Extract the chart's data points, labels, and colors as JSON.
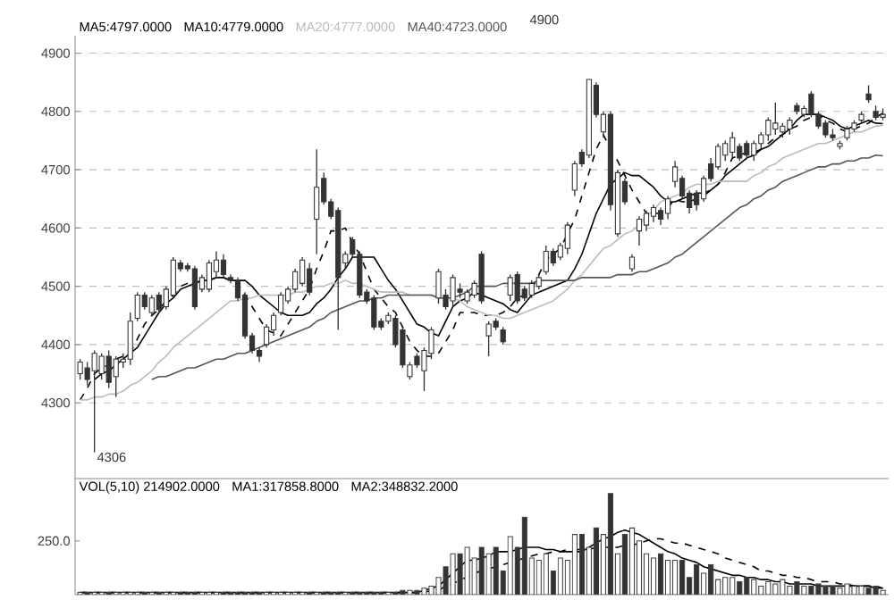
{
  "chart_data": [
    {
      "type": "candlestick",
      "categories": [
        null,
        null,
        null,
        null,
        null,
        null,
        null,
        null,
        null,
        null,
        null,
        null,
        null,
        null,
        null,
        null,
        null,
        null,
        null,
        null,
        null,
        null,
        null,
        null,
        null,
        null,
        null,
        null,
        null,
        null,
        null,
        null,
        null,
        null,
        null,
        null,
        null,
        null,
        null,
        null,
        null,
        null,
        null,
        null,
        null,
        null,
        null,
        null,
        null,
        null,
        null,
        null,
        null,
        null,
        null,
        null,
        null,
        null,
        null,
        null,
        null,
        null,
        null,
        null,
        null,
        null,
        null,
        null,
        null,
        null,
        null,
        null,
        null,
        null,
        null,
        null,
        null,
        null,
        null,
        null,
        null,
        null,
        null,
        null,
        null,
        null,
        null,
        null,
        null,
        null,
        null,
        null,
        null,
        null,
        null,
        null,
        null,
        null,
        null,
        null,
        null,
        null,
        null,
        null,
        null,
        null,
        null,
        null,
        null,
        null,
        null,
        null,
        null
      ],
      "ohlc": [
        [
          4350,
          4375,
          4340,
          4370
        ],
        [
          4360,
          4370,
          4330,
          4340
        ],
        [
          4355,
          4390,
          4215,
          4385
        ],
        [
          4350,
          4385,
          4340,
          4380
        ],
        [
          4380,
          4390,
          4325,
          4335
        ],
        [
          4345,
          4380,
          4310,
          4375
        ],
        [
          4370,
          4385,
          4360,
          4375
        ],
        [
          4375,
          4455,
          4365,
          4440
        ],
        [
          4445,
          4490,
          4440,
          4485
        ],
        [
          4485,
          4490,
          4460,
          4465
        ],
        [
          4455,
          4485,
          4450,
          4480
        ],
        [
          4485,
          4490,
          4455,
          4460
        ],
        [
          4465,
          4500,
          4460,
          4495
        ],
        [
          4485,
          4550,
          4480,
          4545
        ],
        [
          4540,
          4545,
          4525,
          4530
        ],
        [
          4535,
          4540,
          4525,
          4530
        ],
        [
          4530,
          4535,
          4460,
          4465
        ],
        [
          4495,
          4520,
          4490,
          4515
        ],
        [
          4495,
          4545,
          4490,
          4540
        ],
        [
          4525,
          4560,
          4515,
          4545
        ],
        [
          4545,
          4555,
          4515,
          4520
        ],
        [
          4515,
          4520,
          4505,
          4510
        ],
        [
          4510,
          4515,
          4475,
          4480
        ],
        [
          4485,
          4490,
          4410,
          4415
        ],
        [
          4415,
          4420,
          4385,
          4390
        ],
        [
          4390,
          4395,
          4370,
          4380
        ],
        [
          4400,
          4435,
          4395,
          4430
        ],
        [
          4425,
          4455,
          4415,
          4450
        ],
        [
          4455,
          4490,
          4450,
          4485
        ],
        [
          4475,
          4500,
          4470,
          4495
        ],
        [
          4495,
          4530,
          4490,
          4525
        ],
        [
          4505,
          4550,
          4500,
          4545
        ],
        [
          4530,
          4540,
          4485,
          4490
        ],
        [
          4615,
          4735,
          4555,
          4670
        ],
        [
          4685,
          4695,
          4640,
          4645
        ],
        [
          4645,
          4650,
          4615,
          4620
        ],
        [
          4630,
          4635,
          4425,
          4515
        ],
        [
          4540,
          4560,
          4530,
          4555
        ],
        [
          4580,
          4585,
          4550,
          4555
        ],
        [
          4555,
          4560,
          4480,
          4485
        ],
        [
          4490,
          4495,
          4470,
          4475
        ],
        [
          4480,
          4485,
          4425,
          4430
        ],
        [
          4440,
          4445,
          4425,
          4430
        ],
        [
          4440,
          4455,
          4435,
          4450
        ],
        [
          4445,
          4450,
          4395,
          4400
        ],
        [
          4425,
          4430,
          4360,
          4365
        ],
        [
          4345,
          4370,
          4340,
          4365
        ],
        [
          4380,
          4385,
          4360,
          4365
        ],
        [
          4355,
          4395,
          4320,
          4390
        ],
        [
          4385,
          4430,
          4375,
          4425
        ],
        [
          4480,
          4530,
          4470,
          4525
        ],
        [
          4485,
          4495,
          4460,
          4465
        ],
        [
          4475,
          4520,
          4465,
          4515
        ],
        [
          4495,
          4505,
          4480,
          4490
        ],
        [
          4475,
          4495,
          4470,
          4490
        ],
        [
          4485,
          4510,
          4480,
          4505
        ],
        [
          4555,
          4560,
          4470,
          4475
        ],
        [
          4415,
          4440,
          4380,
          4435
        ],
        [
          4440,
          4445,
          4425,
          4430
        ],
        [
          4425,
          4430,
          4400,
          4405
        ],
        [
          4485,
          4520,
          4475,
          4515
        ],
        [
          4520,
          4525,
          4470,
          4475
        ],
        [
          4495,
          4500,
          4475,
          4480
        ],
        [
          4485,
          4510,
          4480,
          4505
        ],
        [
          4500,
          4520,
          4495,
          4515
        ],
        [
          4525,
          4570,
          4520,
          4560
        ],
        [
          4560,
          4565,
          4535,
          4540
        ],
        [
          4550,
          4575,
          4545,
          4570
        ],
        [
          4565,
          4610,
          4555,
          4605
        ],
        [
          4665,
          4715,
          4655,
          4710
        ],
        [
          4730,
          4735,
          4705,
          4710
        ],
        [
          4725,
          4855,
          4720,
          4855
        ],
        [
          4845,
          4850,
          4790,
          4795
        ],
        [
          4765,
          4800,
          4755,
          4795
        ],
        [
          4795,
          4800,
          4630,
          4640
        ],
        [
          4590,
          4700,
          4585,
          4695
        ],
        [
          4680,
          4685,
          4640,
          4645
        ],
        [
          4530,
          4555,
          4525,
          4550
        ],
        [
          4595,
          4620,
          4570,
          4615
        ],
        [
          4605,
          4630,
          4595,
          4625
        ],
        [
          4620,
          4640,
          4610,
          4635
        ],
        [
          4630,
          4635,
          4605,
          4615
        ],
        [
          4625,
          4655,
          4615,
          4650
        ],
        [
          4680,
          4715,
          4670,
          4705
        ],
        [
          4685,
          4690,
          4650,
          4655
        ],
        [
          4660,
          4665,
          4625,
          4635
        ],
        [
          4660,
          4665,
          4630,
          4640
        ],
        [
          4650,
          4690,
          4645,
          4685
        ],
        [
          4710,
          4720,
          4680,
          4685
        ],
        [
          4705,
          4745,
          4700,
          4740
        ],
        [
          4725,
          4750,
          4715,
          4745
        ],
        [
          4730,
          4765,
          4720,
          4755
        ],
        [
          4740,
          4745,
          4715,
          4720
        ],
        [
          4745,
          4750,
          4720,
          4725
        ],
        [
          4725,
          4750,
          4715,
          4745
        ],
        [
          4745,
          4765,
          4735,
          4760
        ],
        [
          4760,
          4790,
          4750,
          4785
        ],
        [
          4770,
          4815,
          4760,
          4780
        ],
        [
          4765,
          4780,
          4755,
          4775
        ],
        [
          4770,
          4790,
          4760,
          4785
        ],
        [
          4810,
          4815,
          4795,
          4800
        ],
        [
          4795,
          4810,
          4790,
          4805
        ],
        [
          4830,
          4835,
          4790,
          4795
        ],
        [
          4795,
          4800,
          4770,
          4775
        ],
        [
          4780,
          4785,
          4755,
          4760
        ],
        [
          4760,
          4770,
          4750,
          4755
        ],
        [
          4740,
          4750,
          4735,
          4745
        ],
        [
          4755,
          4775,
          4750,
          4770
        ],
        [
          4770,
          4785,
          4765,
          4780
        ],
        [
          4785,
          4800,
          4780,
          4795
        ],
        [
          4830,
          4845,
          4815,
          4820
        ],
        [
          4800,
          4810,
          4785,
          4790
        ],
        [
          4790,
          4805,
          4785,
          4795
        ]
      ],
      "series": [
        {
          "type": "line",
          "color": "#000000",
          "line_style": "dashed",
          "values": [
            4305,
            4325,
            4350,
            4360,
            4365,
            4375,
            4380,
            4385,
            4410,
            4435,
            4450,
            4460,
            4475,
            4485,
            4500,
            4505,
            4505,
            4510,
            4510,
            4515,
            4515,
            4510,
            4505,
            4485,
            4465,
            4445,
            4425,
            4420,
            4415,
            4435,
            4455,
            4475,
            4495,
            4530,
            4560,
            4595,
            4595,
            4600,
            4575,
            4555,
            4525,
            4495,
            4480,
            4465,
            4455,
            4430,
            4405,
            4390,
            4380,
            4380,
            4385,
            4405,
            4425,
            4455,
            4455,
            4455,
            4450,
            4450,
            4450,
            4455,
            4465,
            4480,
            4485,
            4495,
            4520,
            4545,
            4555,
            4565,
            4590,
            4615,
            4655,
            4695,
            4735,
            4760,
            4735,
            4715,
            4690,
            4665,
            4645,
            4625,
            4625,
            4625,
            4635,
            4650,
            4645,
            4645,
            4650,
            4655,
            4665,
            4675,
            4695,
            4720,
            4725,
            4730,
            4730,
            4735,
            4745,
            4755,
            4760,
            4770,
            4775,
            4785,
            4790,
            4795,
            4785,
            4780,
            4770,
            4765,
            4770,
            4775,
            4780,
            4790,
            4797
          ]
        },
        {
          "type": "line",
          "color": "#000000",
          "line_style": "solid",
          "values": [
            null,
            null,
            4340,
            4350,
            4355,
            4365,
            4375,
            4385,
            4395,
            4415,
            4435,
            4455,
            4470,
            4480,
            4495,
            4500,
            4505,
            4510,
            4510,
            4515,
            4515,
            4510,
            4510,
            4510,
            4500,
            4485,
            4475,
            4465,
            4455,
            4450,
            4450,
            4450,
            4455,
            4470,
            4480,
            4495,
            4515,
            4530,
            4550,
            4550,
            4550,
            4550,
            4530,
            4510,
            4495,
            4475,
            4455,
            4435,
            4430,
            4420,
            4415,
            4440,
            4465,
            4475,
            4480,
            4490,
            4485,
            4480,
            4475,
            4470,
            4460,
            4455,
            4470,
            4485,
            4490,
            4495,
            4500,
            4505,
            4510,
            4530,
            4555,
            4590,
            4625,
            4650,
            4675,
            4685,
            4695,
            4690,
            4690,
            4680,
            4670,
            4655,
            4645,
            4645,
            4650,
            4655,
            4660,
            4660,
            4665,
            4675,
            4690,
            4700,
            4710,
            4720,
            4725,
            4735,
            4740,
            4750,
            4760,
            4770,
            4785,
            4795,
            4795,
            4795,
            4790,
            4785,
            4775,
            4770,
            4775,
            4780,
            4785,
            4780,
            4779
          ]
        },
        {
          "type": "line",
          "color": "#bbbbbb",
          "line_style": "solid",
          "values": [
            4305,
            4305,
            4310,
            4310,
            4315,
            4315,
            4320,
            4330,
            4335,
            4345,
            4355,
            4370,
            4380,
            4395,
            4405,
            4415,
            4425,
            4435,
            4445,
            4455,
            4465,
            4475,
            4475,
            4480,
            4480,
            4485,
            4485,
            4485,
            4485,
            4485,
            4490,
            4490,
            4495,
            4500,
            4500,
            4505,
            4505,
            4510,
            4505,
            4505,
            4500,
            4495,
            4490,
            4490,
            4490,
            4490,
            4485,
            4485,
            4485,
            4485,
            4480,
            4480,
            4480,
            4475,
            4465,
            4460,
            4455,
            4450,
            4450,
            4445,
            4445,
            4450,
            4455,
            4460,
            4465,
            4470,
            4475,
            4485,
            4495,
            4510,
            4520,
            4535,
            4550,
            4565,
            4570,
            4580,
            4590,
            4595,
            4605,
            4620,
            4630,
            4645,
            4650,
            4655,
            4660,
            4670,
            4675,
            4675,
            4675,
            4680,
            4680,
            4680,
            4680,
            4680,
            4690,
            4695,
            4705,
            4710,
            4720,
            4725,
            4730,
            4735,
            4740,
            4745,
            4745,
            4750,
            4755,
            4760,
            4765,
            4765,
            4770,
            4775,
            4776
          ]
        },
        {
          "type": "line",
          "color": "#555555",
          "line_style": "solid",
          "values": [
            null,
            null,
            null,
            null,
            null,
            null,
            null,
            null,
            null,
            null,
            4340,
            4345,
            4345,
            4350,
            4355,
            4360,
            4360,
            4365,
            4370,
            4375,
            4375,
            4380,
            4385,
            4385,
            4390,
            4395,
            4400,
            4405,
            4410,
            4415,
            4420,
            4425,
            4430,
            4440,
            4445,
            4455,
            4460,
            4465,
            4470,
            4475,
            4475,
            4480,
            4480,
            4485,
            4485,
            4485,
            4485,
            4485,
            4485,
            4485,
            4480,
            4480,
            4480,
            4485,
            4490,
            4500,
            4500,
            4500,
            4500,
            4505,
            4505,
            4505,
            4505,
            4505,
            4510,
            4510,
            4510,
            4510,
            4510,
            4510,
            4515,
            4515,
            4515,
            4515,
            4515,
            4520,
            4520,
            4520,
            4525,
            4525,
            4530,
            4535,
            4540,
            4550,
            4555,
            4565,
            4575,
            4585,
            4595,
            4605,
            4615,
            4625,
            4635,
            4640,
            4650,
            4655,
            4665,
            4670,
            4680,
            4685,
            4690,
            4695,
            4700,
            4705,
            4705,
            4710,
            4710,
            4715,
            4715,
            4720,
            4720,
            4725,
            4724
          ]
        }
      ],
      "ylim": [
        4170,
        4930
      ],
      "yticks": [
        4300,
        4400,
        4500,
        4600,
        4700,
        4800,
        4900
      ],
      "grid": "y",
      "tick_labels": "y",
      "annotations": [
        "MA5:4797.0000",
        "MA10:4779.0000",
        "MA20:4777.0000",
        "MA40:4723.0000",
        "4900",
        "4306"
      ]
    },
    {
      "type": "bar",
      "categories": [
        null,
        null,
        null,
        null,
        null,
        null,
        null,
        null,
        null,
        null,
        null,
        null,
        null,
        null,
        null,
        null,
        null,
        null,
        null,
        null,
        null,
        null,
        null,
        null,
        null,
        null,
        null,
        null,
        null,
        null,
        null,
        null,
        null,
        null,
        null,
        null,
        null,
        null,
        null,
        null,
        null,
        null,
        null,
        null,
        null,
        null,
        null,
        null,
        null,
        null,
        null,
        null,
        null,
        null,
        null,
        null,
        null,
        null,
        null,
        null,
        null,
        null,
        null,
        null,
        null,
        null,
        null,
        null,
        null,
        null,
        null,
        null,
        null,
        null,
        null,
        null,
        null,
        null,
        null,
        null,
        null,
        null,
        null,
        null,
        null,
        null,
        null,
        null,
        null,
        null,
        null,
        null,
        null,
        null,
        null,
        null,
        null,
        null,
        null,
        null,
        null,
        null,
        null,
        null,
        null,
        null,
        null,
        null,
        null,
        null,
        null,
        null,
        null
      ],
      "values": [
        10,
        10,
        10,
        10,
        10,
        10,
        10,
        10,
        10,
        10,
        10,
        10,
        10,
        10,
        10,
        10,
        10,
        10,
        10,
        10,
        10,
        10,
        10,
        10,
        10,
        10,
        10,
        10,
        10,
        10,
        10,
        10,
        10,
        10,
        10,
        10,
        10,
        10,
        10,
        10,
        10,
        10,
        10,
        10,
        10,
        20,
        20,
        20,
        30,
        40,
        80,
        130,
        190,
        190,
        220,
        170,
        220,
        190,
        220,
        110,
        270,
        220,
        360,
        170,
        160,
        190,
        110,
        170,
        160,
        280,
        280,
        220,
        310,
        280,
        470,
        190,
        280,
        310,
        250,
        190,
        170,
        190,
        160,
        160,
        160,
        80,
        140,
        100,
        140,
        70,
        80,
        80,
        60,
        80,
        70,
        40,
        60,
        50,
        70,
        40,
        60,
        40,
        40,
        50,
        40,
        40,
        30,
        50,
        40,
        40,
        30,
        40,
        20
      ],
      "colors": [
        "#ffffff",
        "#333333",
        "#ffffff",
        "#ffffff",
        "#333333",
        "#ffffff",
        "#ffffff",
        "#ffffff",
        "#ffffff",
        "#333333",
        "#ffffff",
        "#333333",
        "#ffffff",
        "#ffffff",
        "#333333",
        "#333333",
        "#333333",
        "#ffffff",
        "#ffffff",
        "#ffffff",
        "#333333",
        "#333333",
        "#333333",
        "#333333",
        "#333333",
        "#333333",
        "#ffffff",
        "#ffffff",
        "#ffffff",
        "#ffffff",
        "#ffffff",
        "#ffffff",
        "#333333",
        "#ffffff",
        "#333333",
        "#333333",
        "#333333",
        "#ffffff",
        "#333333",
        "#333333",
        "#333333",
        "#333333",
        "#333333",
        "#ffffff",
        "#333333",
        "#333333",
        "#ffffff",
        "#333333",
        "#ffffff",
        "#ffffff",
        "#ffffff",
        "#333333",
        "#ffffff",
        "#333333",
        "#ffffff",
        "#ffffff",
        "#333333",
        "#ffffff",
        "#333333",
        "#333333",
        "#ffffff",
        "#333333",
        "#333333",
        "#ffffff",
        "#ffffff",
        "#ffffff",
        "#333333",
        "#ffffff",
        "#ffffff",
        "#ffffff",
        "#333333",
        "#ffffff",
        "#333333",
        "#ffffff",
        "#333333",
        "#ffffff",
        "#333333",
        "#ffffff",
        "#ffffff",
        "#ffffff",
        "#ffffff",
        "#333333",
        "#ffffff",
        "#ffffff",
        "#333333",
        "#333333",
        "#333333",
        "#ffffff",
        "#333333",
        "#ffffff",
        "#ffffff",
        "#ffffff",
        "#333333",
        "#333333",
        "#ffffff",
        "#ffffff",
        "#ffffff",
        "#ffffff",
        "#ffffff",
        "#ffffff",
        "#333333",
        "#ffffff",
        "#333333",
        "#333333",
        "#333333",
        "#333333",
        "#ffffff",
        "#ffffff",
        "#ffffff",
        "#ffffff",
        "#333333",
        "#333333",
        "#ffffff"
      ],
      "series": [
        {
          "type": "line",
          "color": "#000000",
          "line_style": "solid",
          "values": [
            10,
            10,
            10,
            10,
            10,
            10,
            10,
            10,
            10,
            10,
            10,
            10,
            10,
            10,
            10,
            10,
            10,
            10,
            10,
            10,
            10,
            10,
            10,
            10,
            10,
            10,
            10,
            10,
            10,
            10,
            10,
            10,
            10,
            10,
            10,
            10,
            10,
            10,
            10,
            10,
            10,
            10,
            10,
            10,
            10,
            10,
            10,
            10,
            20,
            30,
            40,
            70,
            100,
            130,
            160,
            160,
            170,
            180,
            200,
            200,
            200,
            210,
            220,
            220,
            220,
            210,
            210,
            200,
            200,
            200,
            200,
            220,
            240,
            260,
            270,
            290,
            300,
            290,
            280,
            260,
            240,
            220,
            200,
            190,
            170,
            160,
            150,
            130,
            120,
            110,
            100,
            90,
            90,
            80,
            80,
            70,
            70,
            60,
            60,
            50,
            50,
            50,
            50,
            40,
            40,
            40,
            40,
            40,
            40,
            40,
            40,
            30,
            30
          ]
        },
        {
          "type": "line",
          "color": "#000000",
          "line_style": "dashed",
          "values": [
            10,
            10,
            10,
            10,
            10,
            10,
            10,
            10,
            10,
            10,
            10,
            10,
            10,
            10,
            10,
            10,
            10,
            10,
            10,
            10,
            10,
            10,
            10,
            10,
            10,
            10,
            10,
            10,
            10,
            10,
            10,
            10,
            10,
            10,
            10,
            10,
            10,
            10,
            10,
            10,
            10,
            10,
            10,
            10,
            10,
            10,
            10,
            10,
            10,
            20,
            20,
            40,
            50,
            70,
            80,
            100,
            110,
            120,
            130,
            140,
            150,
            160,
            170,
            180,
            190,
            190,
            200,
            200,
            210,
            210,
            210,
            210,
            220,
            220,
            220,
            220,
            230,
            230,
            240,
            250,
            260,
            260,
            250,
            240,
            240,
            230,
            220,
            210,
            200,
            190,
            170,
            160,
            150,
            140,
            130,
            110,
            110,
            100,
            90,
            90,
            80,
            80,
            70,
            60,
            60,
            60,
            50,
            50,
            40,
            40,
            40,
            40,
            30
          ]
        }
      ],
      "ylim": [
        0,
        540
      ],
      "yticks": [
        {
          "value": 250,
          "label": "250.0"
        }
      ],
      "tick_labels": "y",
      "annotations": [
        "VOL(5,10) 214902.0000",
        "MA1:317858.8000",
        "MA2:348832.2000"
      ]
    }
  ]
}
